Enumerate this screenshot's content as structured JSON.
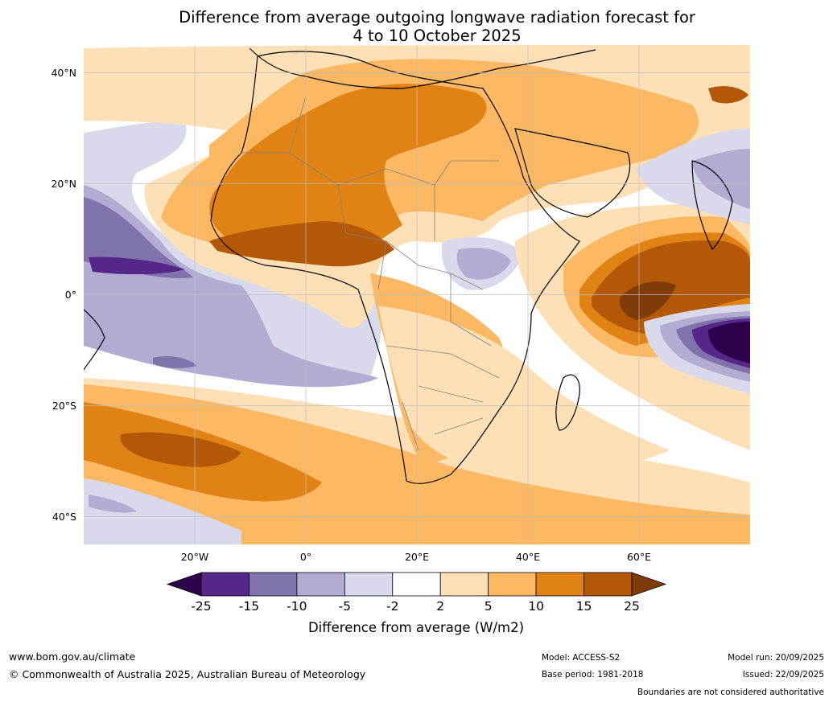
{
  "title": {
    "line1": "Difference from average outgoing longwave radiation forecast for",
    "line2": "4 to 10 October 2025"
  },
  "map": {
    "lon_range": [
      -40,
      80
    ],
    "lat_range": [
      -45,
      45
    ],
    "lat_ticks": [
      {
        "value": 40,
        "label": "40°N"
      },
      {
        "value": 20,
        "label": "20°N"
      },
      {
        "value": 0,
        "label": "0°"
      },
      {
        "value": -20,
        "label": "20°S"
      },
      {
        "value": -40,
        "label": "40°S"
      }
    ],
    "lon_ticks": [
      {
        "value": -20,
        "label": "20°W"
      },
      {
        "value": 0,
        "label": "0°"
      },
      {
        "value": 20,
        "label": "20°E"
      },
      {
        "value": 40,
        "label": "40°E"
      },
      {
        "value": 60,
        "label": "60°E"
      }
    ]
  },
  "legend": {
    "title": "Difference from average (W/m2)",
    "boundaries": [
      "-25",
      "-15",
      "-10",
      "-5",
      "-2",
      "2",
      "5",
      "10",
      "15",
      "25"
    ],
    "colors": [
      "#2d004b",
      "#542788",
      "#8073ac",
      "#b2abd2",
      "#d8daeb",
      "#ffffff",
      "#fee0b6",
      "#fdb863",
      "#e08214",
      "#b35806",
      "#7f3b08"
    ]
  },
  "footer": {
    "website": "www.bom.gov.au/climate",
    "copyright": "© Commonwealth of Australia 2025, Australian Bureau of Meteorology",
    "model": "Model: ACCESS-S2",
    "base_period": "Base period: 1981-2018",
    "model_run": "Model run: 20/09/2025",
    "issued": "Issued: 22/09/2025",
    "disclaimer": "Boundaries are not considered authoritative"
  }
}
